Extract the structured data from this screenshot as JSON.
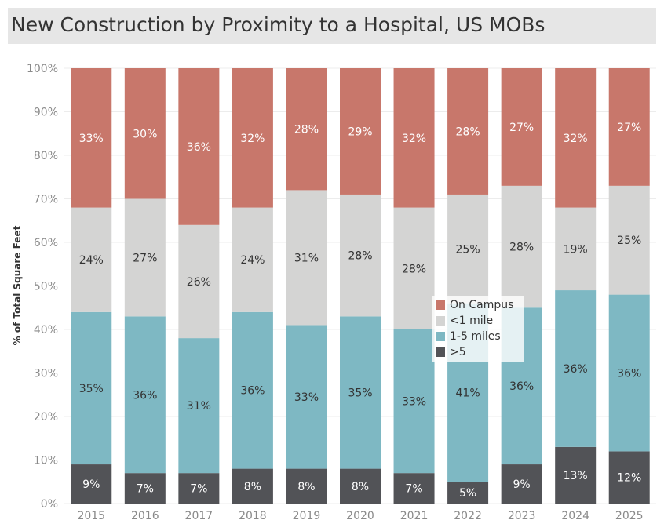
{
  "title": "New Construction by Proximity to a Hospital, US MOBs",
  "chart_data": {
    "type": "bar",
    "stacked": true,
    "title": "New Construction by Proximity to a Hospital, US MOBs",
    "xlabel": "",
    "ylabel": "% of Total Square Feet",
    "ylim": [
      0,
      100
    ],
    "yticks": [
      "0%",
      "10%",
      "20%",
      "30%",
      "40%",
      "50%",
      "60%",
      "70%",
      "80%",
      "90%",
      "100%"
    ],
    "grid": true,
    "legend_position": "center-right",
    "categories": [
      "2015",
      "2016",
      "2017",
      "2018",
      "2019",
      "2020",
      "2021",
      "2022",
      "2023",
      "2024",
      "2025"
    ],
    "series": [
      {
        "name": ">5",
        "color": "#525357",
        "label_color": "#ffffff",
        "values": [
          9,
          7,
          7,
          8,
          8,
          8,
          7,
          5,
          9,
          13,
          12
        ]
      },
      {
        "name": "1-5 miles",
        "color": "#7eb8c3",
        "label_color": "#333333",
        "values": [
          35,
          36,
          31,
          36,
          33,
          35,
          33,
          41,
          36,
          36,
          36
        ]
      },
      {
        "name": "<1 mile",
        "color": "#d4d4d3",
        "label_color": "#333333",
        "values": [
          24,
          27,
          26,
          24,
          31,
          28,
          28,
          25,
          28,
          19,
          25
        ]
      },
      {
        "name": "On Campus",
        "color": "#c8776b",
        "label_color": "#ffffff",
        "values": [
          33,
          30,
          36,
          32,
          28,
          29,
          32,
          28,
          27,
          32,
          27
        ]
      }
    ],
    "legend_order": [
      "On Campus",
      "<1 mile",
      "1-5 miles",
      ">5"
    ]
  }
}
